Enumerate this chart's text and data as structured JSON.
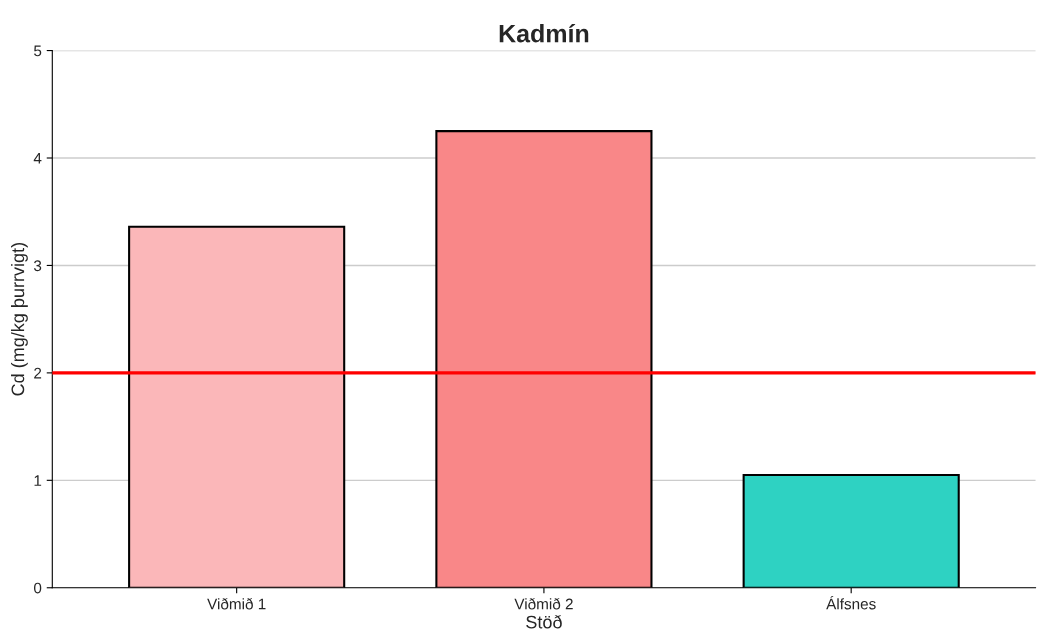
{
  "chart_data": {
    "type": "bar",
    "title": "Kadmín",
    "xlabel": "Stöð",
    "ylabel": "Cd (mg/kg þurrvigt)",
    "categories": [
      "Viðmið 1",
      "Viðmið 2",
      "Álfsnes"
    ],
    "values": [
      3.36,
      4.25,
      1.05
    ],
    "colors": [
      "#fbb7b9",
      "#f98788",
      "#2ed2c2"
    ],
    "ylim": [
      0,
      5
    ],
    "yticks": [
      0,
      1,
      2,
      3,
      4,
      5
    ],
    "grid": "y",
    "ref_lines": [
      {
        "axis": "y",
        "value": 2,
        "color": "#ff0000",
        "line_style": "solid"
      }
    ]
  }
}
